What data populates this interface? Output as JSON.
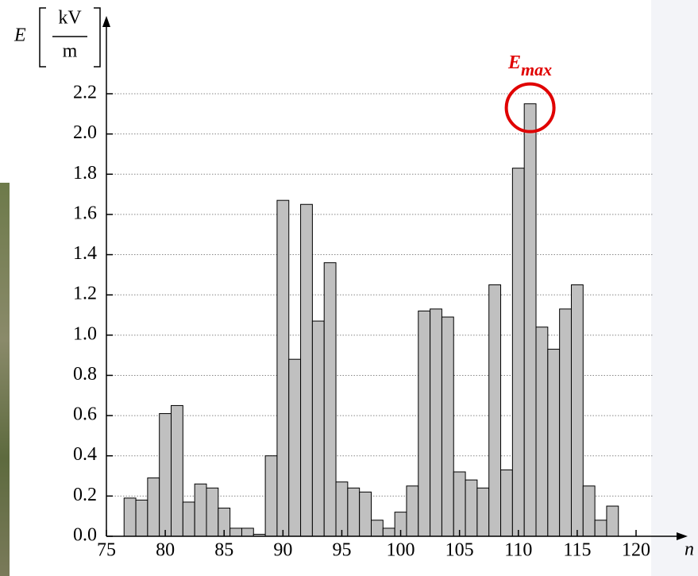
{
  "chart_data": {
    "type": "bar",
    "y_symbol": "E",
    "y_unit_numerator": "kV",
    "y_unit_denominator": "m",
    "x_label": "n",
    "annotation": {
      "text": "E",
      "subscript": "max"
    },
    "x": [
      77,
      78,
      79,
      80,
      81,
      82,
      83,
      84,
      85,
      86,
      87,
      88,
      89,
      90,
      91,
      92,
      93,
      94,
      95,
      96,
      97,
      98,
      99,
      100,
      101,
      102,
      103,
      104,
      105,
      106,
      107,
      108,
      109,
      110,
      111,
      112,
      113,
      114,
      115,
      116,
      117,
      118
    ],
    "values": [
      0.19,
      0.18,
      0.29,
      0.61,
      0.65,
      0.17,
      0.26,
      0.24,
      0.14,
      0.04,
      0.04,
      0.01,
      0.4,
      1.67,
      0.88,
      1.65,
      1.07,
      1.36,
      0.27,
      0.24,
      0.22,
      0.08,
      0.04,
      0.12,
      0.25,
      1.12,
      1.13,
      1.09,
      0.32,
      0.28,
      0.24,
      1.25,
      0.33,
      1.83,
      2.15,
      1.04,
      0.93,
      1.13,
      1.25,
      0.25,
      0.08,
      0.15
    ],
    "color": "#c0c0c0",
    "xlim": [
      75,
      120
    ],
    "xticks": [
      75,
      80,
      85,
      90,
      95,
      100,
      105,
      110,
      115,
      120
    ],
    "ylim": [
      0,
      2.2
    ],
    "yticks": [
      {
        "value": 0,
        "label": "0.0"
      },
      {
        "value": 0.2,
        "label": "0.2"
      },
      {
        "value": 0.4,
        "label": "0.4"
      },
      {
        "value": 0.6,
        "label": "0.6"
      },
      {
        "value": 0.8,
        "label": "0.8"
      },
      {
        "value": 1.0,
        "label": "1.0"
      },
      {
        "value": 1.2,
        "label": "1.2"
      },
      {
        "value": 1.4,
        "label": "1.4"
      },
      {
        "value": 1.6,
        "label": "1.6"
      },
      {
        "value": 1.8,
        "label": "1.8"
      },
      {
        "value": 2.0,
        "label": "2.0"
      },
      {
        "value": 2.2,
        "label": "2.2"
      }
    ],
    "grid": true
  }
}
